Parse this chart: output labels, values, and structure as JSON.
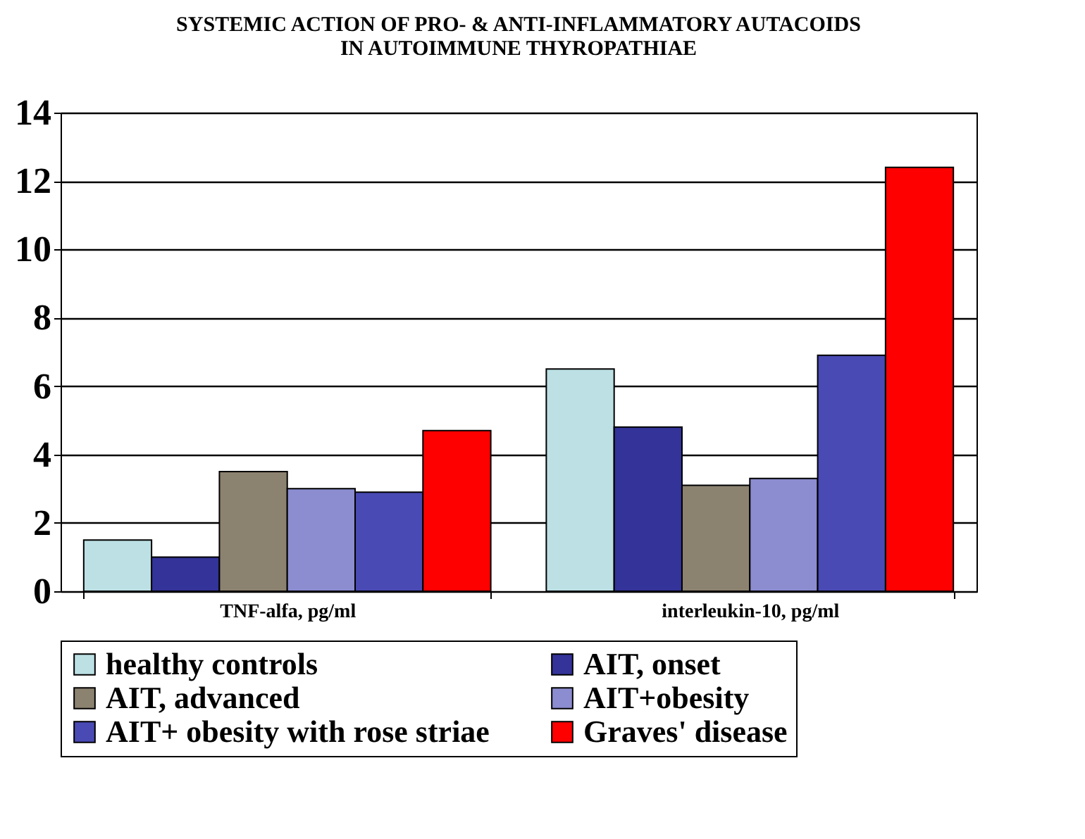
{
  "chart_data": {
    "type": "bar",
    "title": [
      "SYSTEMIC ACTION OF PRO-  & ANTI-INFLAMMATORY AUTACOIDS",
      "IN AUTOIMMUNE THYROPATHIAE"
    ],
    "categories": [
      "TNF-alfa, pg/ml",
      "interleukin-10, pg/ml"
    ],
    "series": [
      {
        "name": "healthy controls",
        "color": "#bce0e4",
        "values": [
          1.5,
          6.5
        ]
      },
      {
        "name": "AIT, onset",
        "color": "#333399",
        "values": [
          1.0,
          4.8
        ]
      },
      {
        "name": "AIT, advanced",
        "color": "#8c8270",
        "values": [
          3.5,
          3.1
        ]
      },
      {
        "name": "AIT+obesity",
        "color": "#8c8cd0",
        "values": [
          3.0,
          3.3
        ]
      },
      {
        "name": "AIT+ obesity with rose striae",
        "color": "#4a4ab4",
        "values": [
          2.9,
          6.9
        ]
      },
      {
        "name": "Graves' disease",
        "color": "#ff0000",
        "values": [
          4.7,
          12.4
        ]
      }
    ],
    "ylim": [
      0,
      14
    ],
    "yticks": [
      0,
      2,
      4,
      6,
      8,
      10,
      12,
      14
    ],
    "grid": "y",
    "legend": "bottom"
  }
}
